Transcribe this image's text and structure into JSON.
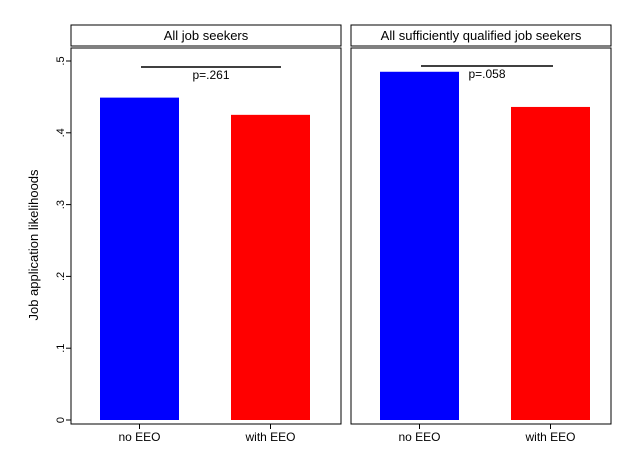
{
  "chart_data": {
    "type": "bar",
    "ylabel": "Job application likelihoods",
    "ylim": [
      0,
      0.5
    ],
    "yticks": [
      {
        "value": 0,
        "label": "0"
      },
      {
        "value": 0.1,
        "label": ".1"
      },
      {
        "value": 0.2,
        "label": ".2"
      },
      {
        "value": 0.3,
        "label": ".3"
      },
      {
        "value": 0.4,
        "label": ".4"
      },
      {
        "value": 0.5,
        "label": ".5"
      }
    ],
    "grid": false,
    "panels": [
      {
        "title": "All job seekers",
        "categories": [
          "no EEO",
          "with EEO"
        ],
        "values": [
          0.449,
          0.425
        ],
        "colors": [
          "#0000ff",
          "#ff0000"
        ],
        "annotation": "p=.261"
      },
      {
        "title": "All sufficiently qualified job seekers",
        "categories": [
          "no EEO",
          "with EEO"
        ],
        "values": [
          0.485,
          0.436
        ],
        "colors": [
          "#0000ff",
          "#ff0000"
        ],
        "annotation": "p=.058"
      }
    ]
  }
}
